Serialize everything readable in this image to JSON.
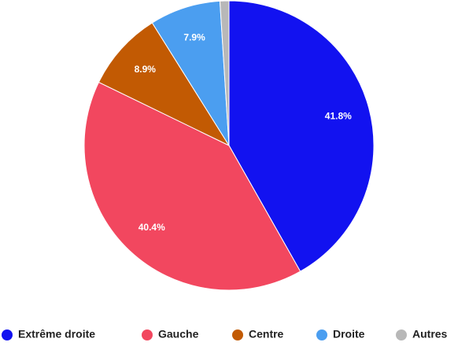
{
  "chart_data": {
    "type": "pie",
    "categories": [
      "Extrême droite",
      "Gauche",
      "Centre",
      "Droite",
      "Autres"
    ],
    "values": [
      41.8,
      40.4,
      8.9,
      7.9,
      1.0
    ],
    "value_labels": [
      "41.8%",
      "40.4%",
      "8.9%",
      "7.9%",
      null
    ],
    "colors": [
      "#1212f0",
      "#f2475f",
      "#c25a03",
      "#4b9ef0",
      "#b8b8b8"
    ],
    "legend": "bottom"
  }
}
